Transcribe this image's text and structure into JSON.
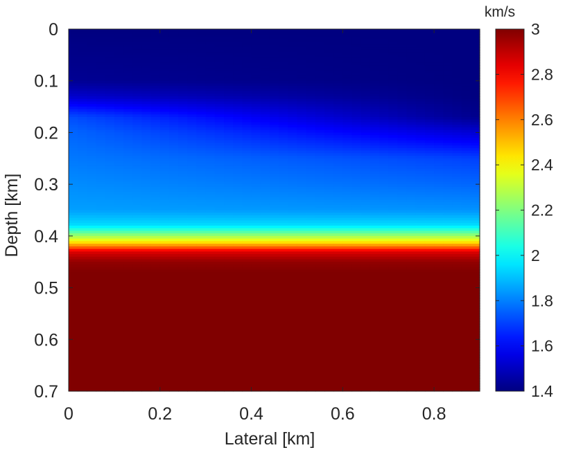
{
  "chart_data": {
    "type": "heatmap",
    "title": "",
    "xlabel": "Lateral [km]",
    "ylabel": "Depth [km]",
    "xlim": [
      0,
      0.9
    ],
    "ylim": [
      0,
      0.7
    ],
    "y_axis_reversed": true,
    "xticks": [
      "0",
      "0.2",
      "0.4",
      "0.6",
      "0.8"
    ],
    "yticks": [
      "0",
      "0.1",
      "0.2",
      "0.3",
      "0.4",
      "0.5",
      "0.6",
      "0.7"
    ],
    "colorbar": {
      "label": "km/s",
      "range": [
        1.4,
        3.0
      ],
      "ticks": [
        "1.4",
        "1.6",
        "1.8",
        "2",
        "2.2",
        "2.4",
        "2.6",
        "2.8",
        "3"
      ],
      "colormap": "jet"
    },
    "velocity_profiles": {
      "columns_x": [
        0,
        0.9
      ],
      "depth": [
        0,
        0.1,
        0.13,
        0.17,
        0.2,
        0.25,
        0.3,
        0.35,
        0.38,
        0.4,
        0.41,
        0.42,
        0.43,
        0.45,
        0.47,
        0.7
      ],
      "velocity_at_x0": [
        1.4,
        1.43,
        1.52,
        1.72,
        1.76,
        1.79,
        1.82,
        1.85,
        1.95,
        2.25,
        2.4,
        2.6,
        2.85,
        2.97,
        3.0,
        3.0
      ],
      "velocity_at_x09": [
        1.4,
        1.4,
        1.4,
        1.42,
        1.53,
        1.7,
        1.76,
        1.83,
        1.95,
        2.25,
        2.4,
        2.6,
        2.85,
        2.97,
        3.0,
        3.0
      ]
    }
  }
}
